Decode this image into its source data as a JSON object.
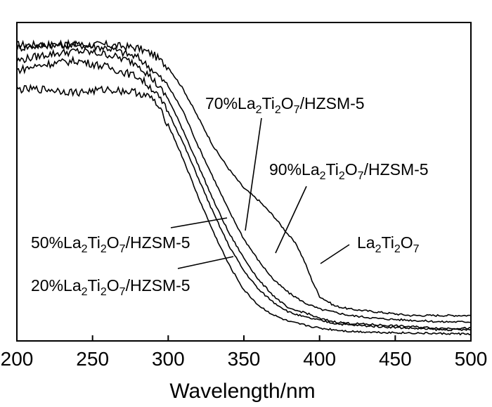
{
  "chart_data": {
    "type": "line",
    "title": "",
    "xlabel": "Wavelength/nm",
    "ylabel": "",
    "xlim": [
      200,
      500
    ],
    "ylim": [
      0,
      1
    ],
    "x_ticks": [
      "200",
      "250",
      "300",
      "350",
      "400",
      "450",
      "500"
    ],
    "grid": false,
    "legend": "none",
    "series": [
      {
        "name": "La2Ti2O7",
        "x": [
          200,
          220,
          240,
          260,
          280,
          290,
          300,
          310,
          320,
          330,
          340,
          350,
          360,
          370,
          380,
          385,
          390,
          395,
          400,
          410,
          420,
          440,
          460,
          480,
          500
        ],
        "y": [
          0.93,
          0.93,
          0.93,
          0.93,
          0.92,
          0.9,
          0.86,
          0.79,
          0.7,
          0.61,
          0.54,
          0.48,
          0.44,
          0.39,
          0.33,
          0.3,
          0.25,
          0.19,
          0.14,
          0.11,
          0.1,
          0.09,
          0.08,
          0.08,
          0.08
        ]
      },
      {
        "name": "90%La2Ti2O7/HZSM-5",
        "x": [
          200,
          220,
          240,
          260,
          280,
          290,
          300,
          310,
          320,
          330,
          340,
          350,
          360,
          370,
          380,
          390,
          400,
          410,
          420,
          440,
          460,
          480,
          500
        ],
        "y": [
          0.92,
          0.93,
          0.93,
          0.92,
          0.89,
          0.85,
          0.8,
          0.72,
          0.61,
          0.51,
          0.41,
          0.32,
          0.25,
          0.19,
          0.15,
          0.12,
          0.1,
          0.09,
          0.08,
          0.07,
          0.065,
          0.06,
          0.06
        ]
      },
      {
        "name": "70%La2Ti2O7/HZSM-5",
        "x": [
          200,
          220,
          240,
          260,
          280,
          290,
          300,
          310,
          320,
          330,
          340,
          350,
          360,
          370,
          380,
          390,
          400,
          410,
          420,
          440,
          460,
          480,
          500
        ],
        "y": [
          0.88,
          0.9,
          0.91,
          0.9,
          0.87,
          0.82,
          0.76,
          0.66,
          0.55,
          0.44,
          0.34,
          0.26,
          0.19,
          0.14,
          0.1,
          0.09,
          0.07,
          0.06,
          0.055,
          0.05,
          0.045,
          0.04,
          0.04
        ]
      },
      {
        "name": "50%La2Ti2O7/HZSM-5",
        "x": [
          200,
          220,
          240,
          260,
          280,
          290,
          300,
          310,
          320,
          330,
          340,
          350,
          360,
          370,
          380,
          390,
          400,
          410,
          420,
          440,
          460,
          480,
          500
        ],
        "y": [
          0.85,
          0.87,
          0.88,
          0.86,
          0.83,
          0.79,
          0.72,
          0.62,
          0.51,
          0.4,
          0.3,
          0.22,
          0.16,
          0.12,
          0.09,
          0.075,
          0.065,
          0.055,
          0.05,
          0.045,
          0.04,
          0.035,
          0.035
        ]
      },
      {
        "name": "20%La2Ti2O7/HZSM-5",
        "x": [
          200,
          220,
          240,
          260,
          280,
          290,
          300,
          310,
          320,
          330,
          340,
          350,
          360,
          370,
          380,
          390,
          400,
          410,
          420,
          440,
          460,
          480,
          500
        ],
        "y": [
          0.79,
          0.79,
          0.78,
          0.79,
          0.78,
          0.76,
          0.68,
          0.57,
          0.45,
          0.34,
          0.24,
          0.16,
          0.11,
          0.08,
          0.06,
          0.05,
          0.04,
          0.035,
          0.03,
          0.027,
          0.025,
          0.023,
          0.022
        ]
      }
    ],
    "annotations": [
      {
        "label": "70%La2Ti2O7/HZSM-5",
        "prefix": "70%",
        "suffix": "/HZSM-5"
      },
      {
        "label": "90%La2Ti2O7/HZSM-5",
        "prefix": "90%",
        "suffix": "/HZSM-5"
      },
      {
        "label": "50%La2Ti2O7/HZSM-5",
        "prefix": "50%",
        "suffix": "/HZSM-5"
      },
      {
        "label": "La2Ti2O7",
        "prefix": "",
        "suffix": ""
      },
      {
        "label": "20%La2Ti2O7/HZSM-5",
        "prefix": "20%",
        "suffix": "/HZSM-5"
      }
    ]
  }
}
